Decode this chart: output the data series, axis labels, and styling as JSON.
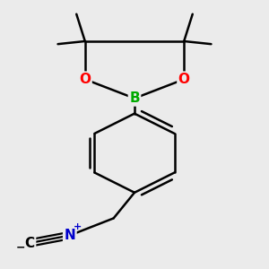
{
  "bg_color": "#ebebeb",
  "bond_color": "#000000",
  "bond_width": 1.8,
  "atom_colors": {
    "B": "#00aa00",
    "O": "#ff0000",
    "N": "#0000cc",
    "C": "#000000"
  },
  "font_size_atom": 11,
  "font_size_charge": 8,
  "figsize": [
    3.0,
    3.0
  ],
  "dpi": 100,
  "bg_color2": "#e8e8e8"
}
